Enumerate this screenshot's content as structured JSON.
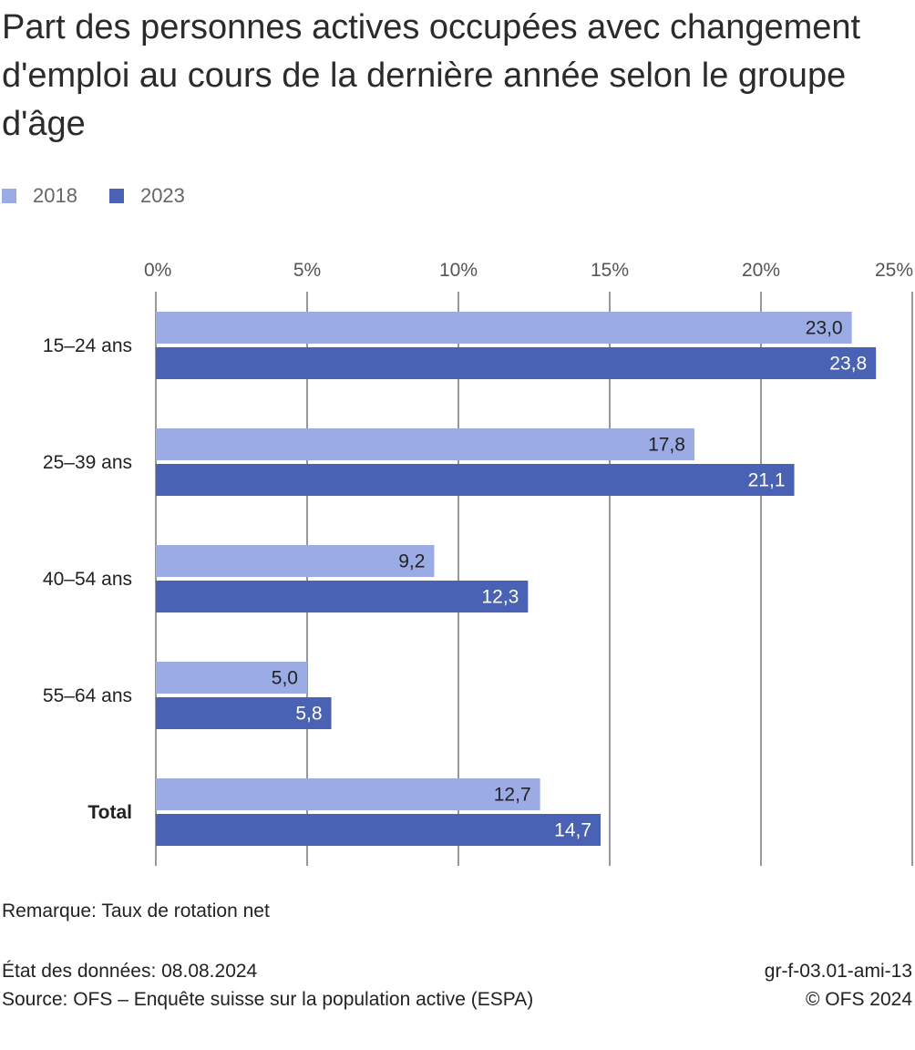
{
  "chart_data": {
    "type": "bar",
    "orientation": "horizontal",
    "title": "Part des personnes actives occupées avec changement d'emploi au cours de la dernière année selon le groupe d'âge",
    "categories": [
      "15–24 ans",
      "25–39 ans",
      "40–54 ans",
      "55–64 ans",
      "Total"
    ],
    "bold_categories": [
      "Total"
    ],
    "series": [
      {
        "name": "2018",
        "color": "#9aabe5",
        "label_color": "#222222",
        "values": [
          23.0,
          17.8,
          9.2,
          5.0,
          12.7
        ],
        "labels": [
          "23,0",
          "17,8",
          "9,2",
          "5,0",
          "12,7"
        ]
      },
      {
        "name": "2023",
        "color": "#4a62b3",
        "label_color": "#ffffff",
        "values": [
          23.8,
          21.1,
          12.3,
          5.8,
          14.7
        ],
        "labels": [
          "23,8",
          "21,1",
          "12,3",
          "5,8",
          "14,7"
        ]
      }
    ],
    "xlim": [
      0,
      25
    ],
    "xticks": [
      0,
      5,
      10,
      15,
      20,
      25
    ],
    "xtick_labels": [
      "0%",
      "5%",
      "10%",
      "15%",
      "20%",
      "25%"
    ],
    "grid": true,
    "legend_position": "top-left"
  },
  "footer": {
    "note": "Remarque: Taux de rotation net",
    "data_date": "État des données: 08.08.2024",
    "source": "Source: OFS – Enquête suisse sur la population active (ESPA)",
    "code": "gr-f-03.01-ami-13",
    "copyright": "© OFS 2024"
  }
}
